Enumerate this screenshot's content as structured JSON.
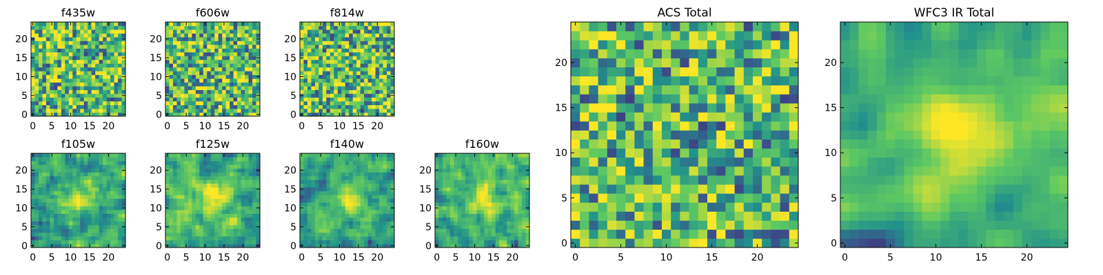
{
  "colormap": [
    "#440154",
    "#3b528b",
    "#21918c",
    "#5ec962",
    "#fde725"
  ],
  "chart_data": [
    {
      "type": "heatmap",
      "title": "f435w",
      "size": 25,
      "seed": 11,
      "smooth": 0,
      "xticks": [
        0,
        5,
        10,
        15,
        20
      ],
      "yticks": [
        0,
        5,
        10,
        15,
        20
      ]
    },
    {
      "type": "heatmap",
      "title": "f606w",
      "size": 25,
      "seed": 23,
      "smooth": 0,
      "xticks": [
        0,
        5,
        10,
        15,
        20
      ],
      "yticks": [
        0,
        5,
        10,
        15,
        20
      ]
    },
    {
      "type": "heatmap",
      "title": "f814w",
      "size": 25,
      "seed": 37,
      "smooth": 0,
      "xticks": [
        0,
        5,
        10,
        15,
        20
      ],
      "yticks": [
        0,
        5,
        10,
        15,
        20
      ]
    },
    {
      "type": "heatmap",
      "title": "f105w",
      "size": 25,
      "seed": 41,
      "smooth": 1,
      "xticks": [
        0,
        5,
        10,
        15,
        20
      ],
      "yticks": [
        0,
        5,
        10,
        15,
        20
      ]
    },
    {
      "type": "heatmap",
      "title": "f125w",
      "size": 25,
      "seed": 53,
      "smooth": 1,
      "xticks": [
        0,
        5,
        10,
        15,
        20
      ],
      "yticks": [
        0,
        5,
        10,
        15,
        20
      ]
    },
    {
      "type": "heatmap",
      "title": "f140w",
      "size": 25,
      "seed": 67,
      "smooth": 1,
      "xticks": [
        0,
        5,
        10,
        15,
        20
      ],
      "yticks": [
        0,
        5,
        10,
        15,
        20
      ]
    },
    {
      "type": "heatmap",
      "title": "f160w",
      "size": 25,
      "seed": 79,
      "smooth": 1,
      "xticks": [
        0,
        5,
        10,
        15,
        20
      ],
      "yticks": [
        0,
        5,
        10,
        15,
        20
      ]
    },
    {
      "type": "heatmap",
      "title": "ACS Total",
      "size": 25,
      "seed": 83,
      "smooth": 0,
      "xticks": [
        0,
        5,
        10,
        15,
        20
      ],
      "yticks": [
        0,
        5,
        10,
        15,
        20
      ]
    },
    {
      "type": "heatmap",
      "title": "WFC3 IR Total",
      "size": 25,
      "seed": 97,
      "smooth": 2,
      "xticks": [
        0,
        5,
        10,
        15,
        20
      ],
      "yticks": [
        0,
        5,
        10,
        15,
        20
      ]
    }
  ]
}
